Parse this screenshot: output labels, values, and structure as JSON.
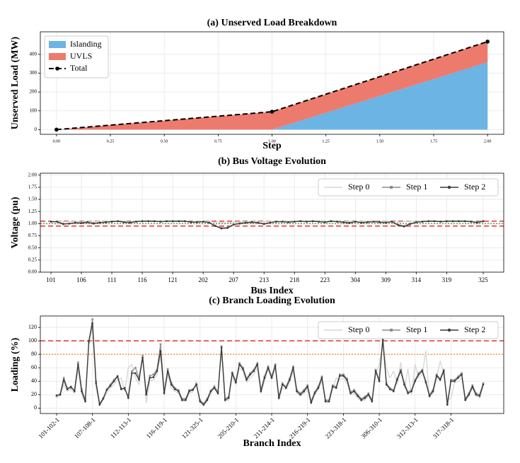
{
  "chart_data": [
    {
      "type": "area",
      "title": "(a) Unserved Load Breakdown",
      "xlabel": "Step",
      "ylabel": "Unserved Load (MW)",
      "x": [
        0,
        1,
        2
      ],
      "xlim": [
        -0.075,
        2.075
      ],
      "xticks": [
        {
          "value": 0,
          "label": "0.00"
        },
        0.25,
        {
          "value": 0.5,
          "label": "0.50"
        },
        0.75,
        {
          "value": 1,
          "label": "1.00"
        },
        1.25,
        {
          "value": 1.5,
          "label": "1.50"
        },
        1.75,
        {
          "value": 2,
          "label": "2.00"
        }
      ],
      "ylim": [
        -25,
        520
      ],
      "yticks": [
        0,
        100,
        200,
        300,
        400
      ],
      "grid": true,
      "legend": "upper left",
      "series": [
        {
          "name": "Islanding",
          "color": "#6cb4e4",
          "kind": "area",
          "values": [
            0,
            0,
            358
          ]
        },
        {
          "name": "UVLS",
          "color": "#ec7b6e",
          "kind": "area",
          "values": [
            0,
            95,
            110
          ]
        },
        {
          "name": "Total",
          "color": "#000000",
          "kind": "line",
          "style": "dashed",
          "marker": "circle",
          "values": [
            0,
            95,
            468
          ]
        }
      ]
    },
    {
      "type": "line",
      "title": "(b) Bus Voltage Evolution",
      "xlabel": "Bus Index",
      "ylabel": "Voltage (pu)",
      "categories": [
        "101",
        null,
        null,
        null,
        null,
        "106",
        null,
        null,
        null,
        null,
        "111",
        null,
        null,
        null,
        null,
        "116",
        null,
        null,
        null,
        null,
        "121",
        null,
        null,
        null,
        null,
        "202",
        null,
        null,
        null,
        null,
        "207",
        null,
        null,
        null,
        null,
        "213",
        null,
        null,
        null,
        null,
        "218",
        null,
        null,
        null,
        null,
        "223",
        null,
        null,
        null,
        null,
        "304",
        null,
        null,
        null,
        null,
        "309",
        null,
        null,
        null,
        null,
        "314",
        null,
        null,
        null,
        null,
        "319",
        null,
        null,
        null,
        null,
        null,
        "325"
      ],
      "ylim": [
        0,
        2.04
      ],
      "yticks": [
        {
          "value": 0,
          "label": "0.00"
        },
        0.25,
        {
          "value": 0.5,
          "label": "0.50"
        },
        0.75,
        {
          "value": 1,
          "label": "1.00"
        },
        1.25,
        {
          "value": 1.5,
          "label": "1.50"
        },
        1.75,
        {
          "value": 2,
          "label": "2.00"
        }
      ],
      "grid": true,
      "legend": "upper right",
      "hlines": [
        {
          "value": 1.05,
          "color": "#e8413c",
          "style": "dashed"
        },
        {
          "value": 0.95,
          "color": "#e8413c",
          "style": "dashed"
        },
        {
          "value": 1.0,
          "color": "#5aa05a",
          "style": "dotted"
        }
      ],
      "series": [
        {
          "name": "Step 0",
          "color": "#d6d6d6",
          "marker": "none",
          "values": [
            1.05,
            1.05,
            1.04,
            1.04,
            1.05,
            1.04,
            1.05,
            1.04,
            1.05,
            1.05,
            1.05,
            1.05,
            1.05,
            1.04,
            1.05,
            1.05,
            1.05,
            1.05,
            1.05,
            1.05,
            1.05,
            1.05,
            1.05,
            1.04,
            1.05,
            1.05,
            1.04,
            1.03,
            1.02,
            1.02,
            1.03,
            1.04,
            1.04,
            1.05,
            1.04,
            1.04,
            1.05,
            1.05,
            1.05,
            1.05,
            1.05,
            1.05,
            1.05,
            1.05,
            1.05,
            1.05,
            1.05,
            1.05,
            1.04,
            1.05,
            1.04,
            1.05,
            1.05,
            1.05,
            1.04,
            1.05,
            1.04,
            1.03,
            1.04,
            1.05,
            1.05,
            1.05,
            1.05,
            1.05,
            1.05,
            1.05,
            1.05,
            1.05,
            1.05,
            1.05,
            1.04,
            1.05
          ]
        },
        {
          "name": "Step 1",
          "color": "#8c8c8c",
          "marker": "square",
          "values": [
            1.04,
            1.04,
            1.0,
            1.0,
            1.02,
            1.02,
            1.03,
            1.01,
            1.02,
            1.03,
            1.04,
            1.05,
            1.03,
            1.03,
            1.04,
            1.05,
            1.05,
            1.05,
            1.04,
            1.05,
            1.05,
            1.05,
            1.05,
            1.03,
            1.03,
            1.04,
            1.02,
            0.96,
            0.91,
            0.92,
            0.98,
            1.01,
            1.02,
            1.03,
            1.02,
            1.0,
            1.02,
            1.04,
            1.04,
            1.03,
            1.04,
            1.05,
            1.04,
            1.05,
            1.04,
            1.03,
            1.05,
            1.04,
            1.03,
            1.02,
            1.04,
            1.02,
            1.03,
            1.04,
            1.03,
            1.02,
            1.04,
            0.98,
            0.95,
            1.0,
            1.03,
            1.04,
            1.05,
            1.05,
            1.04,
            1.05,
            1.05,
            1.05,
            1.05,
            1.04,
            1.03,
            1.05
          ]
        },
        {
          "name": "Step 2",
          "color": "#3a3a3a",
          "marker": "circle",
          "values": [
            1.04,
            1.04,
            0.99,
            1.0,
            1.02,
            1.01,
            1.03,
            1.0,
            1.02,
            1.03,
            1.04,
            1.05,
            1.03,
            1.02,
            1.04,
            1.05,
            1.05,
            1.05,
            1.04,
            1.05,
            1.05,
            1.05,
            1.05,
            1.03,
            1.03,
            1.04,
            1.02,
            0.95,
            0.9,
            0.91,
            0.98,
            1.0,
            1.02,
            1.03,
            1.02,
            0.99,
            1.02,
            1.04,
            1.04,
            1.03,
            1.04,
            1.05,
            1.04,
            1.05,
            1.04,
            1.03,
            1.05,
            1.04,
            1.03,
            1.01,
            1.04,
            1.02,
            1.03,
            1.04,
            1.03,
            1.02,
            1.04,
            0.97,
            0.94,
            0.99,
            1.03,
            1.04,
            1.05,
            1.05,
            1.04,
            1.05,
            1.05,
            1.05,
            1.05,
            1.04,
            1.02,
            1.05
          ]
        }
      ]
    },
    {
      "type": "line",
      "title": "(c) Branch Loading Evolution",
      "xlabel": "Branch Index",
      "ylabel": "Loading (%)",
      "categories": [
        "101-102-1",
        null,
        null,
        null,
        null,
        null,
        null,
        null,
        null,
        null,
        "107-108-1",
        null,
        null,
        null,
        null,
        null,
        null,
        null,
        null,
        null,
        "112-113-1",
        null,
        null,
        null,
        null,
        null,
        null,
        null,
        null,
        null,
        "116-119-1",
        null,
        null,
        null,
        null,
        null,
        null,
        null,
        null,
        null,
        "121-325-1",
        null,
        null,
        null,
        null,
        null,
        null,
        null,
        null,
        null,
        "205-210-1",
        null,
        null,
        null,
        null,
        null,
        null,
        null,
        null,
        null,
        "211-214-1",
        null,
        null,
        null,
        null,
        null,
        null,
        null,
        null,
        null,
        "216-219-1",
        null,
        null,
        null,
        null,
        null,
        null,
        null,
        null,
        null,
        "223-318-1",
        null,
        null,
        null,
        null,
        null,
        null,
        null,
        null,
        null,
        "306-310-1",
        null,
        null,
        null,
        null,
        null,
        null,
        null,
        null,
        null,
        "312-313-1",
        null,
        null,
        null,
        null,
        null,
        null,
        null,
        null,
        null,
        "317-318-1",
        null,
        null,
        null,
        null,
        null,
        null,
        null,
        null,
        null
      ],
      "ylim": [
        -8,
        137
      ],
      "yticks": [
        0,
        20,
        40,
        60,
        80,
        100,
        120
      ],
      "grid": true,
      "legend": "upper right",
      "xtick_rotation": 45,
      "hlines": [
        {
          "value": 100,
          "color": "#e8413c",
          "style": "dashed"
        },
        {
          "value": 80,
          "color": "#f5a03c",
          "style": "dotted"
        }
      ],
      "series": [
        {
          "name": "Step 0",
          "color": "#d6d6d6",
          "marker": "none",
          "values": [
            15,
            18,
            35,
            25,
            28,
            22,
            58,
            20,
            8,
            95,
            118,
            30,
            4,
            12,
            22,
            30,
            35,
            42,
            45,
            25,
            60,
            65,
            45,
            35,
            80,
            8,
            40,
            42,
            50,
            78,
            20,
            50,
            30,
            25,
            22,
            10,
            10,
            22,
            24,
            40,
            8,
            4,
            10,
            20,
            35,
            20,
            85,
            10,
            12,
            48,
            35,
            60,
            55,
            38,
            45,
            50,
            60,
            22,
            40,
            58,
            42,
            60,
            12,
            30,
            28,
            38,
            55,
            22,
            18,
            22,
            28,
            6,
            20,
            28,
            40,
            8,
            8,
            28,
            45,
            42,
            45,
            38,
            20,
            22,
            15,
            10,
            12,
            18,
            8,
            50,
            65,
            98,
            60,
            45,
            55,
            35,
            68,
            30,
            58,
            20,
            65,
            45,
            50,
            85,
            15,
            22,
            45,
            70,
            50,
            12,
            15,
            38,
            40,
            45,
            10,
            18,
            30,
            18,
            15,
            32
          ]
        },
        {
          "name": "Step 1",
          "color": "#8c8c8c",
          "marker": "square",
          "values": [
            18,
            21,
            45,
            30,
            30,
            27,
            68,
            28,
            12,
            98,
            132,
            40,
            7,
            15,
            28,
            35,
            42,
            48,
            30,
            28,
            18,
            55,
            60,
            45,
            78,
            22,
            48,
            50,
            57,
            95,
            24,
            58,
            38,
            30,
            27,
            14,
            14,
            27,
            28,
            36,
            12,
            7,
            14,
            26,
            32,
            24,
            92,
            14,
            17,
            53,
            40,
            67,
            60,
            44,
            52,
            57,
            67,
            27,
            47,
            62,
            47,
            65,
            17,
            37,
            32,
            44,
            62,
            27,
            22,
            27,
            34,
            10,
            24,
            32,
            47,
            12,
            12,
            34,
            32,
            50,
            50,
            44,
            24,
            27,
            20,
            14,
            17,
            22,
            12,
            57,
            42,
            104,
            37,
            30,
            27,
            44,
            57,
            37,
            24,
            27,
            42,
            52,
            57,
            40,
            20,
            27,
            50,
            44,
            57,
            7,
            42,
            42,
            47,
            52,
            14,
            22,
            34,
            22,
            20,
            37
          ]
        },
        {
          "name": "Step 2",
          "color": "#3a3a3a",
          "marker": "circle",
          "values": [
            19,
            20,
            42,
            28,
            32,
            25,
            65,
            25,
            10,
            100,
            126,
            37,
            5,
            14,
            27,
            33,
            40,
            47,
            28,
            30,
            15,
            52,
            52,
            42,
            75,
            20,
            45,
            46,
            55,
            85,
            22,
            55,
            35,
            28,
            25,
            12,
            12,
            25,
            27,
            35,
            10,
            5,
            12,
            25,
            30,
            22,
            90,
            12,
            15,
            52,
            38,
            65,
            58,
            42,
            50,
            55,
            65,
            25,
            45,
            60,
            45,
            63,
            15,
            35,
            30,
            42,
            60,
            25,
            20,
            25,
            32,
            8,
            22,
            30,
            45,
            10,
            10,
            32,
            30,
            48,
            48,
            42,
            22,
            25,
            18,
            12,
            15,
            20,
            10,
            55,
            40,
            102,
            35,
            28,
            25,
            42,
            55,
            35,
            22,
            25,
            40,
            50,
            55,
            38,
            18,
            25,
            48,
            42,
            55,
            5,
            40,
            40,
            45,
            50,
            12,
            20,
            32,
            20,
            18,
            35
          ]
        }
      ]
    }
  ]
}
